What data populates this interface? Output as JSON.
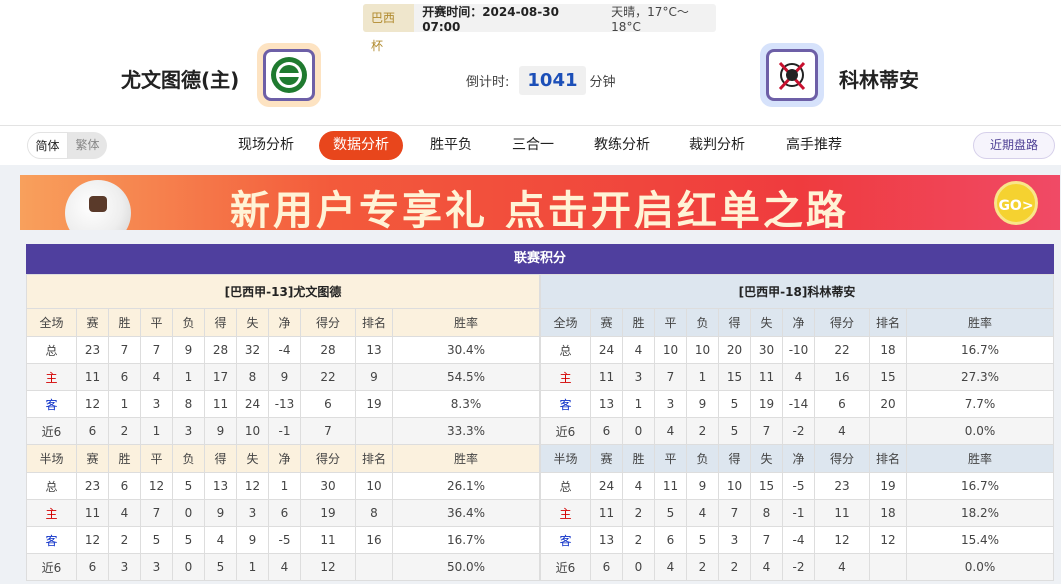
{
  "header": {
    "cup": "巴西杯",
    "kickoff": "开赛时间：2024-08-30 07:00",
    "weather": "天晴，17°C～18°C",
    "home_team": "尤文图德(主)",
    "away_team": "科林蒂安",
    "countdown_label": "倒计时:",
    "countdown_value": "1041",
    "countdown_unit": "分钟",
    "home_logo_color": "#1f7a2f",
    "away_logo_color": "#c8102e"
  },
  "nav": {
    "lang": [
      "简体",
      "繁体"
    ],
    "tabs": [
      "现场分析",
      "数据分析",
      "胜平负",
      "三合一",
      "教练分析",
      "裁判分析",
      "高手推荐"
    ],
    "active": "数据分析",
    "recent": "近期盘路",
    "accent": "#e8461c"
  },
  "banner": {
    "text": "新用户专享礼  点击开启红单之路",
    "go": "GO>"
  },
  "standings": {
    "title": "联赛积分",
    "columns": [
      "赛",
      "胜",
      "平",
      "负",
      "得",
      "失",
      "净",
      "得分",
      "排名",
      "胜率"
    ],
    "teams": [
      {
        "name": "[巴西甲-13]尤文图德",
        "full": {
          "label": "全场",
          "rows": [
            [
              "总",
              "23",
              "7",
              "7",
              "9",
              "28",
              "32",
              "-4",
              "28",
              "13",
              "30.4%"
            ],
            [
              "主",
              "11",
              "6",
              "4",
              "1",
              "17",
              "8",
              "9",
              "22",
              "9",
              "54.5%"
            ],
            [
              "客",
              "12",
              "1",
              "3",
              "8",
              "11",
              "24",
              "-13",
              "6",
              "19",
              "8.3%"
            ],
            [
              "近6",
              "6",
              "2",
              "1",
              "3",
              "9",
              "10",
              "-1",
              "7",
              "",
              "33.3%"
            ]
          ]
        },
        "half": {
          "label": "半场",
          "rows": [
            [
              "总",
              "23",
              "6",
              "12",
              "5",
              "13",
              "12",
              "1",
              "30",
              "10",
              "26.1%"
            ],
            [
              "主",
              "11",
              "4",
              "7",
              "0",
              "9",
              "3",
              "6",
              "19",
              "8",
              "36.4%"
            ],
            [
              "客",
              "12",
              "2",
              "5",
              "5",
              "4",
              "9",
              "-5",
              "11",
              "16",
              "16.7%"
            ],
            [
              "近6",
              "6",
              "3",
              "3",
              "0",
              "5",
              "1",
              "4",
              "12",
              "",
              "50.0%"
            ]
          ]
        }
      },
      {
        "name": "[巴西甲-18]科林蒂安",
        "full": {
          "label": "全场",
          "rows": [
            [
              "总",
              "24",
              "4",
              "10",
              "10",
              "20",
              "30",
              "-10",
              "22",
              "18",
              "16.7%"
            ],
            [
              "主",
              "11",
              "3",
              "7",
              "1",
              "15",
              "11",
              "4",
              "16",
              "15",
              "27.3%"
            ],
            [
              "客",
              "13",
              "1",
              "3",
              "9",
              "5",
              "19",
              "-14",
              "6",
              "20",
              "7.7%"
            ],
            [
              "近6",
              "6",
              "0",
              "4",
              "2",
              "5",
              "7",
              "-2",
              "4",
              "",
              "0.0%"
            ]
          ]
        },
        "half": {
          "label": "半场",
          "rows": [
            [
              "总",
              "24",
              "4",
              "11",
              "9",
              "10",
              "15",
              "-5",
              "23",
              "19",
              "16.7%"
            ],
            [
              "主",
              "11",
              "2",
              "5",
              "4",
              "7",
              "8",
              "-1",
              "11",
              "18",
              "18.2%"
            ],
            [
              "客",
              "13",
              "2",
              "6",
              "5",
              "3",
              "7",
              "-4",
              "12",
              "12",
              "15.4%"
            ],
            [
              "近6",
              "6",
              "0",
              "4",
              "2",
              "2",
              "4",
              "-2",
              "4",
              "",
              "0.0%"
            ]
          ]
        }
      }
    ]
  }
}
